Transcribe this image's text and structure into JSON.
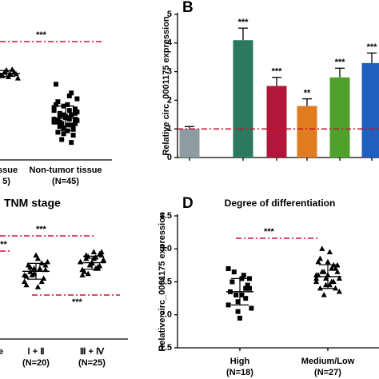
{
  "chart_data": [
    {
      "type": "scatter-groups",
      "ylim": [
        0,
        5
      ],
      "groups": [
        {
          "label": "issue",
          "n_label": "5)",
          "marker": "triangle",
          "mean": 2.97,
          "sd": 0.1,
          "points": [
            3.05,
            2.95,
            3.1,
            2.85,
            3.0,
            2.9,
            3.15,
            2.8,
            3.0,
            2.95,
            3.08,
            2.88
          ]
        },
        {
          "label": "Non-tumor tissue",
          "n_label": "(N=45)",
          "marker": "square",
          "mean": 1.43,
          "sd": 0.42,
          "points": [
            1.4,
            1.6,
            1.2,
            1.9,
            0.9,
            1.5,
            1.3,
            2.1,
            1.1,
            1.7,
            1.45,
            0.7,
            1.35,
            1.8,
            1.25,
            2.3,
            1.0,
            1.55,
            1.15,
            2.6,
            1.65,
            0.85,
            1.4,
            1.5,
            1.2,
            2.0,
            1.3,
            1.75,
            0.6,
            1.45,
            1.1,
            1.6,
            1.9,
            1.35,
            1.05,
            2.2,
            1.5,
            1.25,
            0.95,
            1.7,
            1.4,
            1.55,
            1.2,
            1.85,
            1.3
          ]
        }
      ],
      "brackets": [
        "***"
      ]
    },
    {
      "type": "bar",
      "panel_label": "B",
      "y_label": "Relative circ_0001175 expression",
      "ylim": [
        0,
        5
      ],
      "yticks": [
        0,
        1,
        2,
        3,
        4,
        5
      ],
      "reference": 1,
      "values": [
        1.0,
        4.1,
        2.5,
        1.8,
        2.8,
        3.3
      ],
      "errors": [
        0.08,
        0.42,
        0.3,
        0.25,
        0.32,
        0.35
      ],
      "colors": [
        "#8d9ca0",
        "#2b7a60",
        "#b2173b",
        "#e07c1f",
        "#4ea22c",
        "#1f5fc0"
      ],
      "significance": [
        null,
        "***",
        "***",
        "**",
        "***",
        "***"
      ]
    },
    {
      "type": "scatter-groups",
      "title": "TNM stage",
      "ylim": [
        1.5,
        3.5
      ],
      "left_label": "e",
      "groups": [
        {
          "label": "Ⅰ + Ⅱ",
          "n_label": "(N=20)",
          "marker": "triangle",
          "mean": 2.66,
          "sd": 0.12,
          "points": [
            2.6,
            2.75,
            2.5,
            2.85,
            2.7,
            2.65,
            2.45,
            2.8,
            2.55,
            2.7,
            2.9,
            2.6,
            2.75,
            2.5,
            2.68,
            2.78,
            2.42,
            2.62,
            2.72,
            2.58
          ]
        },
        {
          "label": "Ⅲ + Ⅳ",
          "n_label": "(N=25)",
          "marker": "triangle",
          "mean": 2.79,
          "sd": 0.1,
          "points": [
            2.8,
            2.9,
            2.7,
            2.95,
            2.75,
            2.85,
            2.6,
            2.82,
            2.92,
            2.7,
            2.78,
            2.88,
            2.65,
            2.8,
            2.95,
            2.72,
            2.85,
            2.76,
            2.9,
            2.68,
            2.83,
            2.74,
            2.87,
            2.79,
            2.62
          ]
        }
      ],
      "brackets": [
        "***",
        "***",
        "***"
      ]
    },
    {
      "type": "scatter-groups",
      "panel_label": "D",
      "title": "Degree of differentiation",
      "y_label": "Relative circ_0001175 expression",
      "ylim": [
        1.5,
        3.5
      ],
      "yticks": [
        1.5,
        {
          "value": 2,
          "label": "2.0"
        },
        2.5,
        {
          "value": 3,
          "label": "3.0"
        },
        3.5
      ],
      "groups": [
        {
          "label": "High",
          "n_label": "(N=18)",
          "marker": "square",
          "mean": 2.35,
          "sd": 0.2,
          "points": [
            2.7,
            2.55,
            2.4,
            2.3,
            2.2,
            2.65,
            2.35,
            2.1,
            2.45,
            2.6,
            1.95,
            2.3,
            2.5,
            2.15,
            2.4,
            2.25,
            2.55,
            2.05
          ]
        },
        {
          "label": "Medium/Low",
          "n_label": "(N=27)",
          "marker": "triangle",
          "mean": 2.58,
          "sd": 0.18,
          "points": [
            2.6,
            2.75,
            2.5,
            2.95,
            2.45,
            2.65,
            2.8,
            2.55,
            2.4,
            2.7,
            2.6,
            2.3,
            2.85,
            2.5,
            2.65,
            2.75,
            2.45,
            2.55,
            3.0,
            2.6,
            2.35,
            2.7,
            2.5,
            2.8,
            2.65,
            2.4,
            2.55
          ]
        }
      ],
      "brackets": [
        "***"
      ]
    }
  ]
}
